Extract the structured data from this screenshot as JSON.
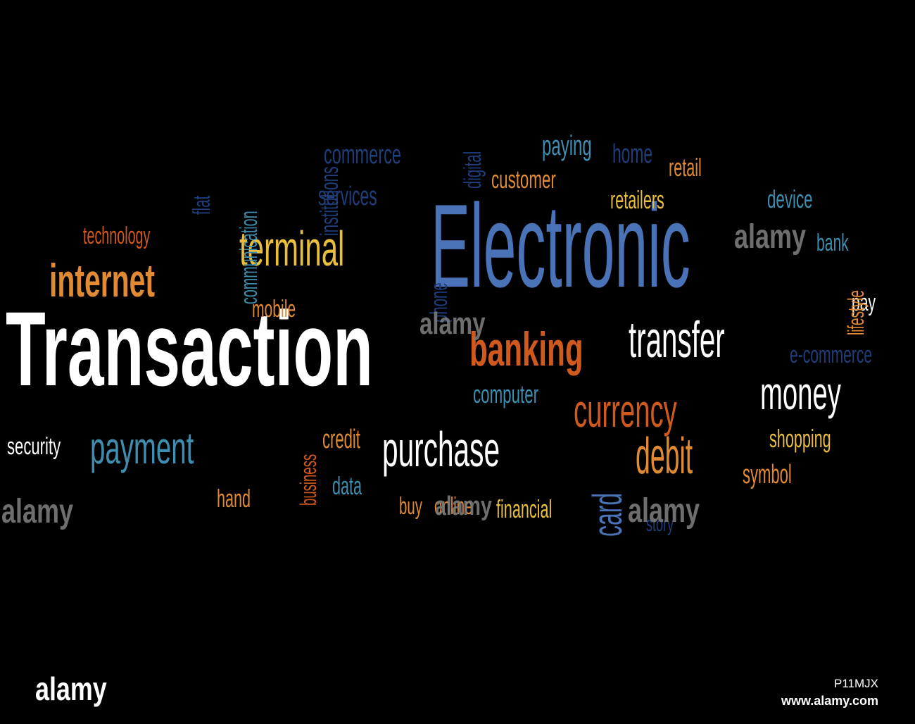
{
  "colors": {
    "background": "#000000",
    "white": "#ffffff",
    "blue": "#4a72b6",
    "navy": "#1f3e7a",
    "teal": "#3f8eb0",
    "orange": "#d05a1e",
    "amber": "#e08a34",
    "yellow": "#e8be3c",
    "gray": "#7a7a7a"
  },
  "words": [
    {
      "text": "Transaction",
      "color": "white"
    },
    {
      "text": "Electronic",
      "color": "blue"
    },
    {
      "text": "internet",
      "color": "amber"
    },
    {
      "text": "terminal",
      "color": "yellow"
    },
    {
      "text": "banking",
      "color": "orange"
    },
    {
      "text": "transfer",
      "color": "white"
    },
    {
      "text": "currency",
      "color": "orange"
    },
    {
      "text": "money",
      "color": "white"
    },
    {
      "text": "payment",
      "color": "teal"
    },
    {
      "text": "purchase",
      "color": "white"
    },
    {
      "text": "debit",
      "color": "amber"
    },
    {
      "text": "card",
      "color": "blue"
    },
    {
      "text": "security",
      "color": "white"
    },
    {
      "text": "credit",
      "color": "amber"
    },
    {
      "text": "data",
      "color": "teal"
    },
    {
      "text": "hand",
      "color": "amber"
    },
    {
      "text": "buy",
      "color": "amber"
    },
    {
      "text": "online",
      "color": "amber"
    },
    {
      "text": "financial",
      "color": "yellow"
    },
    {
      "text": "shopping",
      "color": "yellow"
    },
    {
      "text": "symbol",
      "color": "amber"
    },
    {
      "text": "e-commerce",
      "color": "navy"
    },
    {
      "text": "pay",
      "color": "white"
    },
    {
      "text": "lifestyle",
      "color": "amber"
    },
    {
      "text": "bank",
      "color": "teal"
    },
    {
      "text": "device",
      "color": "teal"
    },
    {
      "text": "retailers",
      "color": "yellow"
    },
    {
      "text": "retail",
      "color": "amber"
    },
    {
      "text": "home",
      "color": "navy"
    },
    {
      "text": "paying",
      "color": "teal"
    },
    {
      "text": "customer",
      "color": "amber"
    },
    {
      "text": "commerce",
      "color": "navy"
    },
    {
      "text": "services",
      "color": "navy"
    },
    {
      "text": "digital",
      "color": "navy"
    },
    {
      "text": "institutions",
      "color": "navy"
    },
    {
      "text": "communication",
      "color": "teal"
    },
    {
      "text": "flat",
      "color": "navy"
    },
    {
      "text": "technology",
      "color": "orange"
    },
    {
      "text": "mobile",
      "color": "amber"
    },
    {
      "text": "phone",
      "color": "navy"
    },
    {
      "text": "computer",
      "color": "teal"
    },
    {
      "text": "business",
      "color": "orange"
    },
    {
      "text": "story",
      "color": "navy"
    }
  ],
  "watermarks": [
    "alamy",
    "alamy",
    "alamy",
    "alamy",
    "alamy"
  ],
  "footer": {
    "logo": "alamy",
    "image_id": "P11MJX",
    "site": "www.alamy.com"
  }
}
